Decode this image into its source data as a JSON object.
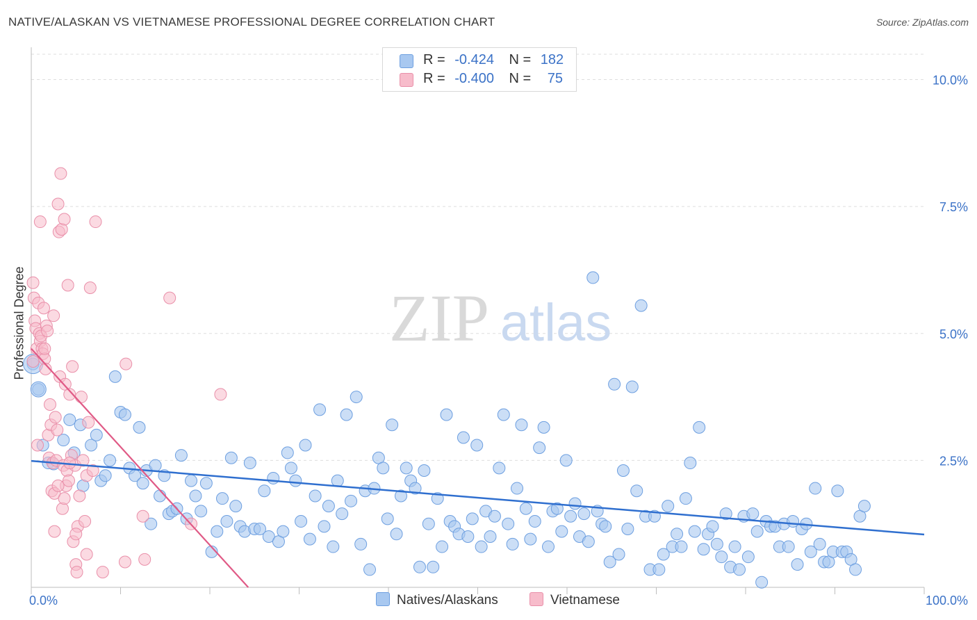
{
  "title": "NATIVE/ALASKAN VS VIETNAMESE PROFESSIONAL DEGREE CORRELATION CHART",
  "source": "Source: ZipAtlas.com",
  "watermark": {
    "zip": "ZIP",
    "atlas": "atlas"
  },
  "legend": {
    "series1": {
      "r_label": "R =",
      "r_value": "-0.424",
      "n_label": "N =",
      "n_value": "182"
    },
    "series2": {
      "r_label": "R =",
      "r_value": "-0.400",
      "n_label": "N =",
      "n_value": "75"
    }
  },
  "colors": {
    "natives_fill": "#a8c8f0",
    "natives_stroke": "#6d9fe0",
    "natives_line": "#2f6fcf",
    "vietnamese_fill": "#f7bccb",
    "vietnamese_stroke": "#e98fa9",
    "vietnamese_line": "#e05a86",
    "axis_text": "#3b72c7"
  },
  "chart_data": {
    "type": "scatter",
    "title": "NATIVE/ALASKAN VS VIETNAMESE PROFESSIONAL DEGREE CORRELATION CHART",
    "xlabel": "",
    "ylabel": "Professional Degree",
    "xlim": [
      0,
      100
    ],
    "ylim": [
      0,
      10.5
    ],
    "x_tick_labels": [
      "0.0%",
      "100.0%"
    ],
    "y_ticks": [
      2.5,
      5.0,
      7.5,
      10.0
    ],
    "y_tick_labels": [
      "2.5%",
      "5.0%",
      "7.5%",
      "10.0%"
    ],
    "grid": true,
    "legend_position": "bottom-center",
    "series": [
      {
        "name": "Natives/Alaskans",
        "r": -0.424,
        "n": 182,
        "trend": {
          "x": [
            0,
            100
          ],
          "y": [
            2.49,
            1.04
          ]
        },
        "points": [
          [
            0.2,
            4.4
          ],
          [
            0.8,
            3.9
          ],
          [
            1.3,
            2.8
          ],
          [
            1.9,
            2.45
          ],
          [
            2.5,
            2.43
          ],
          [
            3.6,
            2.9
          ],
          [
            4.3,
            3.3
          ],
          [
            4.8,
            2.65
          ],
          [
            5.5,
            3.2
          ],
          [
            5.8,
            2.0
          ],
          [
            6.7,
            2.8
          ],
          [
            7.3,
            3.0
          ],
          [
            7.8,
            2.1
          ],
          [
            8.3,
            2.2
          ],
          [
            8.8,
            2.5
          ],
          [
            9.4,
            4.15
          ],
          [
            10.0,
            3.45
          ],
          [
            10.5,
            3.4
          ],
          [
            11.0,
            2.35
          ],
          [
            11.6,
            2.2
          ],
          [
            12.1,
            3.15
          ],
          [
            12.5,
            2.05
          ],
          [
            12.9,
            2.3
          ],
          [
            13.4,
            1.25
          ],
          [
            13.9,
            2.4
          ],
          [
            14.4,
            1.8
          ],
          [
            14.9,
            2.2
          ],
          [
            15.4,
            1.45
          ],
          [
            15.8,
            1.5
          ],
          [
            16.3,
            1.55
          ],
          [
            16.8,
            2.6
          ],
          [
            17.4,
            1.35
          ],
          [
            17.9,
            2.1
          ],
          [
            18.4,
            1.8
          ],
          [
            19.0,
            1.5
          ],
          [
            19.6,
            2.05
          ],
          [
            20.2,
            0.7
          ],
          [
            20.8,
            1.1
          ],
          [
            21.4,
            1.75
          ],
          [
            21.9,
            1.3
          ],
          [
            22.4,
            2.55
          ],
          [
            22.9,
            1.6
          ],
          [
            23.4,
            1.2
          ],
          [
            23.9,
            1.1
          ],
          [
            24.5,
            2.45
          ],
          [
            25.0,
            1.15
          ],
          [
            25.6,
            1.15
          ],
          [
            26.1,
            1.9
          ],
          [
            26.6,
            1.0
          ],
          [
            27.1,
            2.15
          ],
          [
            27.7,
            0.9
          ],
          [
            28.2,
            1.1
          ],
          [
            28.7,
            2.65
          ],
          [
            29.1,
            2.35
          ],
          [
            29.6,
            2.1
          ],
          [
            30.2,
            1.3
          ],
          [
            30.7,
            2.8
          ],
          [
            31.2,
            0.95
          ],
          [
            31.8,
            1.8
          ],
          [
            32.3,
            3.5
          ],
          [
            32.8,
            1.2
          ],
          [
            33.3,
            1.6
          ],
          [
            33.8,
            0.8
          ],
          [
            34.3,
            2.1
          ],
          [
            34.8,
            1.45
          ],
          [
            35.3,
            3.4
          ],
          [
            35.8,
            1.7
          ],
          [
            36.4,
            3.75
          ],
          [
            36.9,
            0.85
          ],
          [
            37.4,
            1.9
          ],
          [
            37.9,
            0.35
          ],
          [
            38.4,
            1.95
          ],
          [
            38.9,
            2.55
          ],
          [
            39.4,
            2.35
          ],
          [
            39.9,
            1.35
          ],
          [
            40.4,
            3.2
          ],
          [
            40.9,
            1.05
          ],
          [
            41.4,
            1.8
          ],
          [
            42.0,
            2.35
          ],
          [
            42.5,
            2.1
          ],
          [
            43.0,
            1.95
          ],
          [
            43.5,
            0.4
          ],
          [
            44.0,
            2.3
          ],
          [
            44.5,
            1.25
          ],
          [
            45.0,
            0.4
          ],
          [
            45.5,
            1.75
          ],
          [
            46.0,
            0.8
          ],
          [
            46.5,
            3.4
          ],
          [
            46.9,
            1.3
          ],
          [
            47.4,
            1.2
          ],
          [
            47.9,
            1.05
          ],
          [
            48.4,
            2.95
          ],
          [
            48.9,
            1.0
          ],
          [
            49.4,
            1.35
          ],
          [
            49.9,
            2.8
          ],
          [
            50.4,
            0.8
          ],
          [
            50.9,
            1.5
          ],
          [
            51.4,
            1.0
          ],
          [
            51.9,
            1.4
          ],
          [
            52.4,
            2.35
          ],
          [
            52.9,
            3.4
          ],
          [
            53.4,
            1.25
          ],
          [
            53.9,
            0.85
          ],
          [
            54.4,
            1.95
          ],
          [
            54.9,
            3.2
          ],
          [
            55.4,
            1.55
          ],
          [
            55.9,
            0.95
          ],
          [
            56.4,
            1.3
          ],
          [
            56.9,
            2.75
          ],
          [
            57.4,
            3.15
          ],
          [
            57.9,
            0.8
          ],
          [
            58.4,
            1.5
          ],
          [
            58.9,
            1.55
          ],
          [
            59.4,
            1.1
          ],
          [
            59.9,
            2.5
          ],
          [
            60.4,
            1.4
          ],
          [
            60.9,
            1.65
          ],
          [
            61.4,
            1.0
          ],
          [
            61.9,
            1.45
          ],
          [
            62.4,
            0.9
          ],
          [
            62.9,
            6.1
          ],
          [
            63.4,
            1.5
          ],
          [
            63.9,
            1.25
          ],
          [
            64.3,
            1.2
          ],
          [
            64.8,
            0.5
          ],
          [
            65.3,
            4.0
          ],
          [
            65.8,
            0.65
          ],
          [
            66.3,
            2.3
          ],
          [
            66.8,
            1.15
          ],
          [
            67.3,
            3.95
          ],
          [
            67.8,
            1.9
          ],
          [
            68.3,
            5.55
          ],
          [
            68.8,
            1.4
          ],
          [
            69.3,
            0.35
          ],
          [
            69.8,
            1.4
          ],
          [
            70.3,
            0.35
          ],
          [
            70.8,
            0.65
          ],
          [
            71.3,
            1.6
          ],
          [
            71.8,
            0.8
          ],
          [
            72.3,
            1.05
          ],
          [
            72.8,
            0.8
          ],
          [
            73.3,
            1.75
          ],
          [
            73.8,
            2.45
          ],
          [
            74.3,
            1.1
          ],
          [
            74.8,
            3.15
          ],
          [
            75.3,
            0.75
          ],
          [
            75.8,
            1.05
          ],
          [
            76.3,
            1.2
          ],
          [
            76.8,
            0.85
          ],
          [
            77.3,
            0.6
          ],
          [
            77.8,
            1.45
          ],
          [
            78.3,
            0.4
          ],
          [
            78.8,
            0.8
          ],
          [
            79.3,
            0.35
          ],
          [
            79.8,
            1.4
          ],
          [
            80.3,
            0.6
          ],
          [
            80.8,
            1.45
          ],
          [
            81.3,
            1.1
          ],
          [
            81.8,
            0.1
          ],
          [
            82.3,
            1.3
          ],
          [
            82.8,
            1.2
          ],
          [
            83.3,
            1.2
          ],
          [
            83.8,
            0.8
          ],
          [
            84.3,
            1.25
          ],
          [
            84.8,
            0.8
          ],
          [
            85.3,
            1.3
          ],
          [
            85.8,
            0.45
          ],
          [
            86.3,
            1.15
          ],
          [
            86.8,
            1.25
          ],
          [
            87.3,
            0.7
          ],
          [
            87.8,
            1.95
          ],
          [
            88.3,
            0.85
          ],
          [
            88.8,
            0.5
          ],
          [
            89.3,
            0.5
          ],
          [
            89.8,
            0.7
          ],
          [
            90.3,
            1.9
          ],
          [
            90.8,
            0.7
          ],
          [
            91.3,
            0.7
          ],
          [
            91.8,
            0.55
          ],
          [
            92.3,
            0.35
          ],
          [
            92.8,
            1.4
          ],
          [
            93.3,
            1.6
          ]
        ]
      },
      {
        "name": "Vietnamese",
        "r": -0.4,
        "n": 75,
        "trend": {
          "x": [
            0,
            24.3
          ],
          "y": [
            4.7,
            0.0
          ]
        },
        "points": [
          [
            0.2,
            6.0
          ],
          [
            0.3,
            5.7
          ],
          [
            0.4,
            5.25
          ],
          [
            0.5,
            5.1
          ],
          [
            0.6,
            4.7
          ],
          [
            0.8,
            5.6
          ],
          [
            0.9,
            5.0
          ],
          [
            1.0,
            4.85
          ],
          [
            1.1,
            4.95
          ],
          [
            1.2,
            4.7
          ],
          [
            1.3,
            4.6
          ],
          [
            1.4,
            5.5
          ],
          [
            1.5,
            4.5
          ],
          [
            1.6,
            4.3
          ],
          [
            1.7,
            5.15
          ],
          [
            1.8,
            5.05
          ],
          [
            1.9,
            3.0
          ],
          [
            2.0,
            2.55
          ],
          [
            2.1,
            3.6
          ],
          [
            2.2,
            3.2
          ],
          [
            2.3,
            1.9
          ],
          [
            2.4,
            2.45
          ],
          [
            2.5,
            5.35
          ],
          [
            2.6,
            1.85
          ],
          [
            2.7,
            3.35
          ],
          [
            2.8,
            2.5
          ],
          [
            2.9,
            3.1
          ],
          [
            3.0,
            7.55
          ],
          [
            3.1,
            7.0
          ],
          [
            3.2,
            4.15
          ],
          [
            3.3,
            8.15
          ],
          [
            3.4,
            7.05
          ],
          [
            3.5,
            1.55
          ],
          [
            3.6,
            2.4
          ],
          [
            3.7,
            7.25
          ],
          [
            3.8,
            4.0
          ],
          [
            3.9,
            2.0
          ],
          [
            4.0,
            2.3
          ],
          [
            4.1,
            5.95
          ],
          [
            4.2,
            2.1
          ],
          [
            4.3,
            3.8
          ],
          [
            4.5,
            2.6
          ],
          [
            4.6,
            4.35
          ],
          [
            4.7,
            0.9
          ],
          [
            4.9,
            2.4
          ],
          [
            5.0,
            0.45
          ],
          [
            5.1,
            0.3
          ],
          [
            5.2,
            1.2
          ],
          [
            5.4,
            1.8
          ],
          [
            5.6,
            3.75
          ],
          [
            5.8,
            2.5
          ],
          [
            6.0,
            1.3
          ],
          [
            6.2,
            2.2
          ],
          [
            6.4,
            3.25
          ],
          [
            6.6,
            5.9
          ],
          [
            6.9,
            2.3
          ],
          [
            7.2,
            7.2
          ],
          [
            8.0,
            0.3
          ],
          [
            10.5,
            0.5
          ],
          [
            10.6,
            4.4
          ],
          [
            12.5,
            1.4
          ],
          [
            12.7,
            0.55
          ],
          [
            15.5,
            5.7
          ],
          [
            17.9,
            1.25
          ],
          [
            21.2,
            3.8
          ],
          [
            0.7,
            2.8
          ],
          [
            1.5,
            4.7
          ],
          [
            2.6,
            1.1
          ],
          [
            3.0,
            2.0
          ],
          [
            3.7,
            1.75
          ],
          [
            4.3,
            2.45
          ],
          [
            5.0,
            1.05
          ],
          [
            6.2,
            0.65
          ],
          [
            0.2,
            4.45
          ],
          [
            1.0,
            7.2
          ]
        ]
      }
    ]
  },
  "bottom_legend": {
    "series1": "Natives/Alaskans",
    "series2": "Vietnamese"
  }
}
